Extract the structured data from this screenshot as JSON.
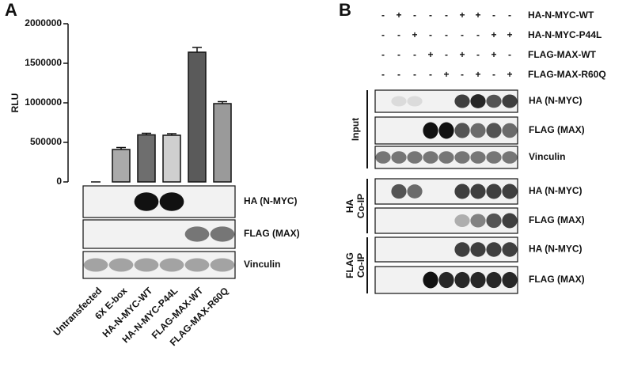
{
  "chart_data": {
    "type": "bar",
    "ylabel": "RLU",
    "categories": [
      "Untransfected",
      "6X E-box",
      "HA-N-MYC-WT",
      "HA-N-MYC-P44L",
      "FLAG-MAX-WT",
      "FLAG-MAX-R60Q"
    ],
    "values": [
      0,
      410000,
      595000,
      590000,
      1640000,
      990000
    ],
    "errors": [
      0,
      25000,
      20000,
      20000,
      60000,
      25000
    ],
    "colors": [
      "#aaaaaa",
      "#aaaaaa",
      "#6e6e6e",
      "#cfcfcf",
      "#5a5a5a",
      "#9a9a9a"
    ],
    "ylim": [
      0,
      2000000
    ],
    "yticks": [
      0,
      500000,
      1000000,
      1500000,
      2000000
    ]
  },
  "panel_a": {
    "label": "A",
    "blots": [
      "HA (N-MYC)",
      "FLAG (MAX)",
      "Vinculin"
    ]
  },
  "panel_b": {
    "label": "B",
    "constructs": [
      {
        "name": "HA-N-MYC-WT",
        "signs": [
          "-",
          "+",
          "-",
          "-",
          "-",
          "+",
          "+",
          "-",
          "-"
        ]
      },
      {
        "name": "HA-N-MYC-P44L",
        "signs": [
          "-",
          "-",
          "+",
          "-",
          "-",
          "-",
          "-",
          "+",
          "+"
        ]
      },
      {
        "name": "FLAG-MAX-WT",
        "signs": [
          "-",
          "-",
          "-",
          "+",
          "-",
          "+",
          "-",
          "+",
          "-"
        ]
      },
      {
        "name": "FLAG-MAX-R60Q",
        "signs": [
          "-",
          "-",
          "-",
          "-",
          "+",
          "-",
          "+",
          "-",
          "+"
        ]
      }
    ],
    "groups": [
      {
        "lines": [
          "Input"
        ],
        "blots": [
          "HA (N-MYC)",
          "FLAG (MAX)",
          "Vinculin"
        ]
      },
      {
        "lines": [
          "HA",
          "Co-IP"
        ],
        "blots": [
          "HA (N-MYC)",
          "FLAG (MAX)"
        ]
      },
      {
        "lines": [
          "FLAG",
          "Co-IP"
        ],
        "blots": [
          "HA (N-MYC)",
          "FLAG (MAX)"
        ]
      }
    ]
  }
}
